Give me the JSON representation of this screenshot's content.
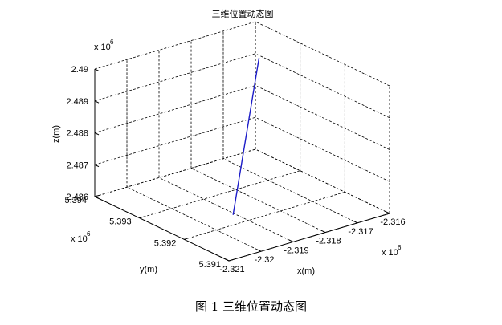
{
  "chart_data": {
    "type": "line3d",
    "title": "三维位置动态图",
    "xlabel": "x(m)",
    "ylabel": "y(m)",
    "zlabel": "z(m)",
    "x_multiplier": "x 10",
    "y_multiplier": "x 10",
    "z_multiplier": "x 10",
    "multiplier_exponent": "6",
    "x_ticks": [
      "-2.321",
      "-2.32",
      "-2.319",
      "-2.318",
      "-2.317",
      "-2.316"
    ],
    "y_ticks": [
      "5.391",
      "5.392",
      "5.393",
      "5.394"
    ],
    "z_ticks": [
      "2.486",
      "2.487",
      "2.488",
      "2.489",
      "2.49"
    ],
    "xlim": [
      -2.321,
      -2.316
    ],
    "ylim": [
      5.391,
      5.394
    ],
    "zlim": [
      2.486,
      2.49
    ],
    "grid": true,
    "series": [
      {
        "color": "#1c1cc8",
        "x": [
          -2.3192,
          -2.317
        ],
        "y": [
          5.3922,
          5.3932
        ],
        "z": [
          2.4861,
          2.4897
        ]
      }
    ]
  },
  "caption": "图 1  三维位置动态图"
}
